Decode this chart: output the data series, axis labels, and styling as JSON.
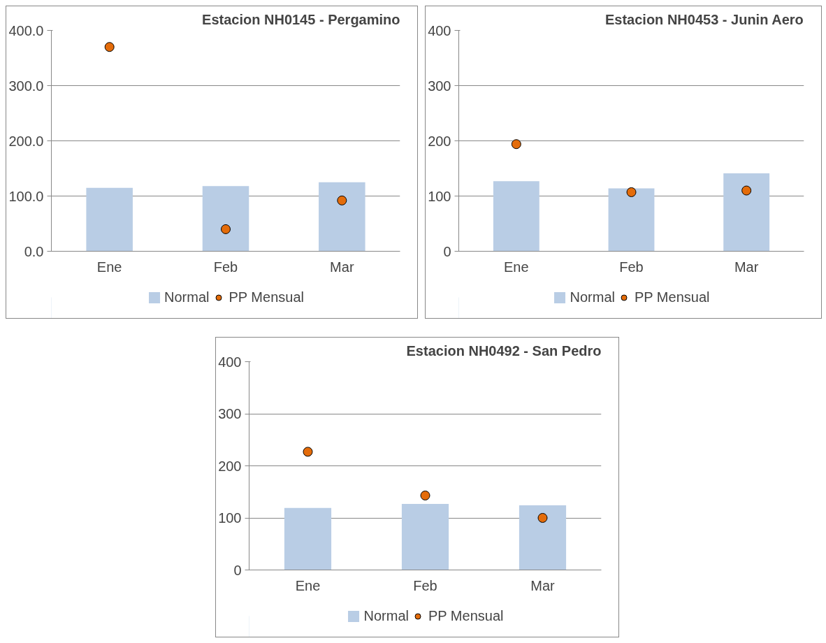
{
  "chart_data": [
    {
      "type": "bar",
      "title": "Estacion NH0145 - Pergamino",
      "categories": [
        "Ene",
        "Feb",
        "Mar"
      ],
      "ylim": [
        0,
        400
      ],
      "yticks": [
        {
          "value": 0,
          "label": "0.0"
        },
        {
          "value": 100,
          "label": "100.0"
        },
        {
          "value": 200,
          "label": "200.0"
        },
        {
          "value": 300,
          "label": "300.0"
        },
        {
          "value": 400,
          "label": "400.0"
        }
      ],
      "grid": "y",
      "legend": "bottom",
      "series": [
        {
          "name": "Normal",
          "color": "#b9cde5",
          "values": [
            115,
            118,
            125
          ]
        },
        {
          "name": "PP Mensual",
          "type": "scatter",
          "marker": "circle",
          "color": "#e46c0a",
          "values": [
            370,
            40,
            92
          ]
        }
      ]
    },
    {
      "type": "bar",
      "title": "Estacion NH0453 - Junin Aero",
      "categories": [
        "Ene",
        "Feb",
        "Mar"
      ],
      "ylim": [
        0,
        400
      ],
      "yticks": [
        0,
        100,
        200,
        300,
        400
      ],
      "grid": "y",
      "legend": "bottom",
      "series": [
        {
          "name": "Normal",
          "color": "#b9cde5",
          "values": [
            127,
            114,
            141
          ]
        },
        {
          "name": "PP Mensual",
          "type": "scatter",
          "marker": "circle",
          "color": "#e46c0a",
          "values": [
            194,
            107,
            110
          ]
        }
      ]
    },
    {
      "type": "bar",
      "title": "Estacion NH0492 - San Pedro",
      "categories": [
        "Ene",
        "Feb",
        "Mar"
      ],
      "ylim": [
        0,
        400
      ],
      "yticks": [
        0,
        100,
        200,
        300,
        400
      ],
      "grid": "y",
      "legend": "bottom",
      "series": [
        {
          "name": "Normal",
          "color": "#b9cde5",
          "values": [
            119,
            127,
            124
          ]
        },
        {
          "name": "PP Mensual",
          "type": "scatter",
          "marker": "circle",
          "color": "#e46c0a",
          "values": [
            227,
            143,
            100
          ]
        }
      ]
    }
  ]
}
